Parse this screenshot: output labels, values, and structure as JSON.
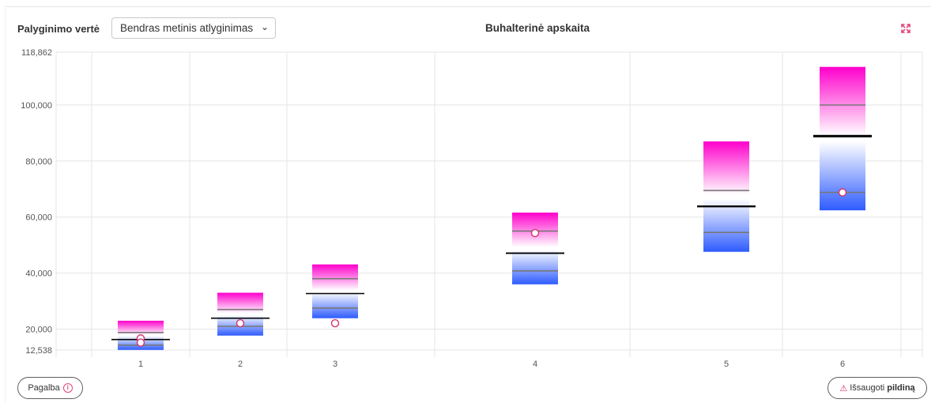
{
  "toolbar": {
    "comparison_label": "Palyginimo vertė",
    "comparison_selected": "Bendras metinis atlyginimas",
    "title": "Buhalterinė apskaita",
    "expand_icon": "expand-arrows-icon"
  },
  "footer": {
    "help_label": "Pagalba",
    "save_prefix": "Išsaugoti",
    "save_bold": "pildiną"
  },
  "colors": {
    "top": "#ff00cc",
    "bottom": "#2e5bff",
    "marker_stroke": "#d6336c",
    "median": "#000000",
    "quartile": "#777777"
  },
  "chart_data": {
    "type": "box",
    "title": "Buhalterinė apskaita",
    "xlabel": "",
    "ylabel": "",
    "ylim": [
      12538,
      118862
    ],
    "yticks": [
      "118,862",
      "100,000",
      "80,000",
      "60,000",
      "40,000",
      "20,000",
      "12,538"
    ],
    "ytick_values": [
      118862,
      100000,
      80000,
      60000,
      40000,
      20000,
      12538
    ],
    "categories": [
      "1",
      "2",
      "3",
      "4",
      "5",
      "6"
    ],
    "series": [
      {
        "category": "1",
        "min": 12600,
        "q1": 14300,
        "median": 16300,
        "q3": 18800,
        "max": 23000,
        "markers": [
          16700,
          15200
        ]
      },
      {
        "category": "2",
        "min": 17700,
        "q1": 21000,
        "median": 23900,
        "q3": 27000,
        "max": 33000,
        "markers": [
          22100
        ]
      },
      {
        "category": "3",
        "min": 23900,
        "q1": 27500,
        "median": 32700,
        "q3": 38000,
        "max": 43100,
        "markers": [
          22100
        ]
      },
      {
        "category": "4",
        "min": 36000,
        "q1": 40800,
        "median": 47100,
        "q3": 55000,
        "max": 61600,
        "markers": [
          54300
        ]
      },
      {
        "category": "5",
        "min": 47600,
        "q1": 54500,
        "median": 63800,
        "q3": 69500,
        "max": 87000,
        "markers": []
      },
      {
        "category": "6",
        "min": 62400,
        "q1": 68800,
        "median": 88900,
        "q3": 100000,
        "max": 113600,
        "markers": [
          68800
        ]
      }
    ]
  }
}
